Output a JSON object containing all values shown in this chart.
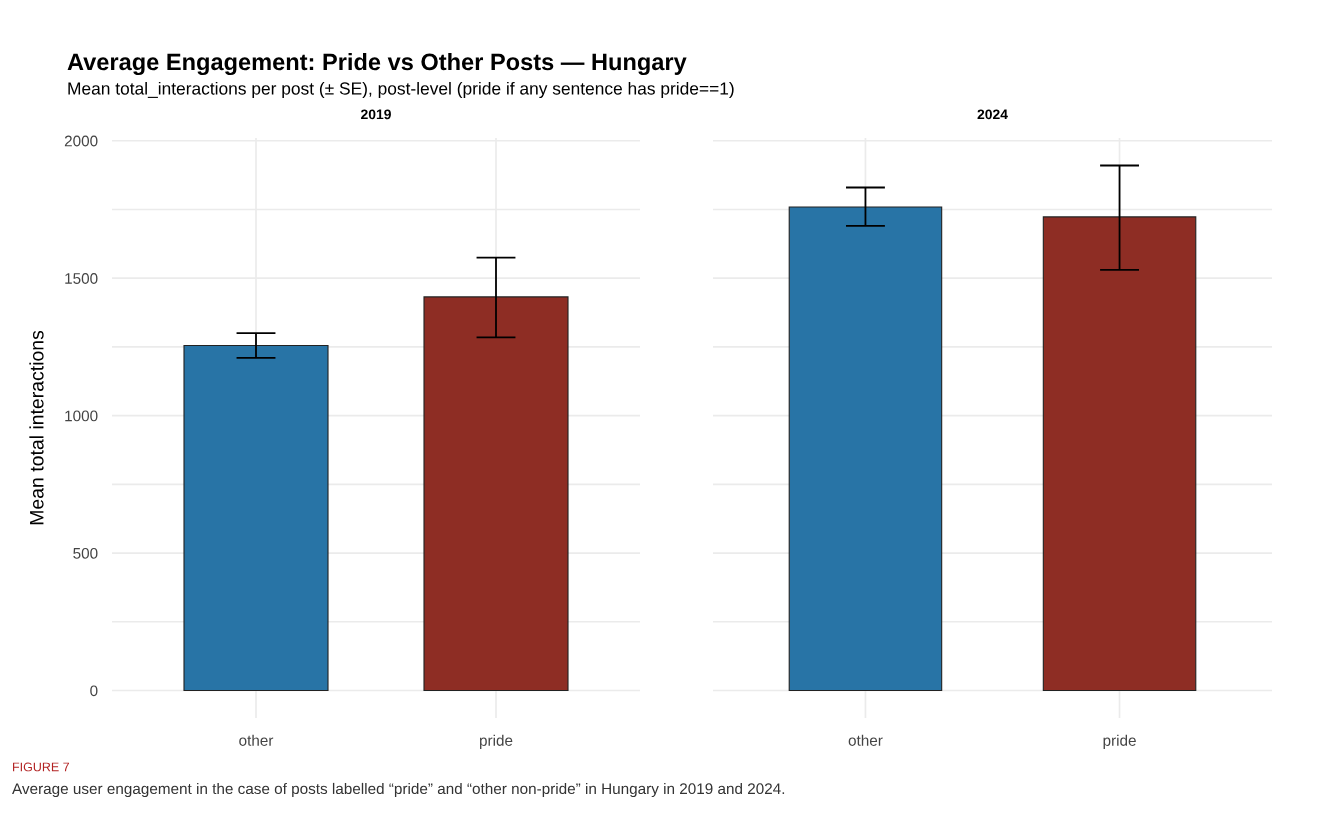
{
  "chart_data": [
    {
      "type": "bar",
      "title": "Average Engagement: Pride vs Other Posts — Hungary",
      "subtitle": "Mean total_interactions per post (± SE), post-level (pride if any sentence has pride==1)",
      "ylabel": "Mean total interactions",
      "annotations": [
        "2019",
        "FIGURE 7",
        "Average user engagement in the case of posts labelled “pride” and “other non-pride” in Hungary in 2019 and 2024."
      ],
      "categories": [
        "other",
        "pride"
      ],
      "values": [
        1255,
        1432
      ],
      "colors": [
        "#2874a6",
        "#8e2d24"
      ],
      "errors": [
        [
          1210,
          1300
        ],
        [
          1285,
          1575
        ]
      ],
      "ylim": [
        -100,
        2010
      ],
      "yticks": [
        0,
        {
          "value": 250,
          "label": null
        },
        500,
        {
          "value": 750,
          "label": null
        },
        1000,
        {
          "value": 1250,
          "label": null
        },
        1500,
        {
          "value": 1750,
          "label": null
        },
        2000
      ],
      "grid": true
    },
    {
      "type": "bar",
      "annotations": [
        "2024"
      ],
      "categories": [
        "other",
        "pride"
      ],
      "values": [
        1759,
        1723
      ],
      "colors": [
        "#2874a6",
        "#8e2d24"
      ],
      "errors": [
        [
          1690,
          1830
        ],
        [
          1530,
          1910
        ]
      ],
      "ylim": [
        -100,
        2010
      ],
      "yticks": [
        0,
        {
          "value": 250,
          "label": null
        },
        500,
        {
          "value": 750,
          "label": null
        },
        1000,
        {
          "value": 1250,
          "label": null
        },
        1500,
        {
          "value": 1750,
          "label": null
        },
        2000
      ],
      "grid": true,
      "tick_labels": "x"
    }
  ]
}
